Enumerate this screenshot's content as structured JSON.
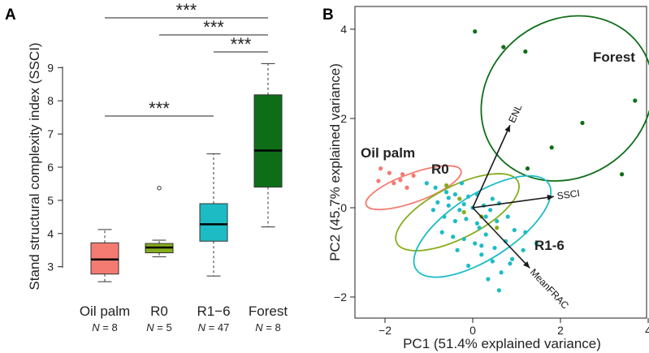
{
  "panels": {
    "a": {
      "letter": "A",
      "ylabel": "Stand structural complexity index (SSCI)",
      "significance_label": "***",
      "n_prefix": "N",
      "n_equals": " = "
    },
    "b": {
      "letter": "B",
      "xlabel": "PC1 (51.4% explained variance)",
      "ylabel": "PC2 (45.7% explained variance)"
    }
  },
  "chart_data": [
    {
      "type": "box",
      "ylabel": "Stand structural complexity index (SSCI)",
      "ylim": [
        2.55,
        9.7
      ],
      "yticks": [
        3,
        4,
        5,
        6,
        7,
        8,
        9
      ],
      "grid": false,
      "categories": [
        "Oil palm",
        "R0",
        "R1−6",
        "Forest"
      ],
      "n": [
        8,
        5,
        47,
        8
      ],
      "colors": [
        "#f47b72",
        "#86ad1c",
        "#1dbcc5",
        "#0e6e18"
      ],
      "boxes": [
        {
          "min": 2.55,
          "q1": 2.78,
          "median": 3.22,
          "q3": 3.72,
          "max": 4.12,
          "outliers": []
        },
        {
          "min": 3.3,
          "q1": 3.42,
          "median": 3.58,
          "q3": 3.7,
          "max": 3.8,
          "outliers": [
            5.37
          ]
        },
        {
          "min": 2.72,
          "q1": 3.77,
          "median": 4.28,
          "q3": 4.9,
          "max": 6.4,
          "outliers": []
        },
        {
          "min": 4.2,
          "q1": 5.4,
          "median": 6.5,
          "q3": 8.18,
          "max": 9.12,
          "outliers": []
        }
      ],
      "significance": [
        {
          "from": "Oil palm",
          "to": "Forest",
          "label": "***"
        },
        {
          "from": "R0",
          "to": "Forest",
          "label": "***"
        },
        {
          "from": "R1−6",
          "to": "Forest",
          "label": "***"
        },
        {
          "from": "Oil palm",
          "to": "R1−6",
          "label": "***"
        }
      ]
    },
    {
      "type": "scatter",
      "subtype": "pca-biplot",
      "xlabel": "PC1 (51.4% explained variance)",
      "ylabel": "PC2 (45.7% explained variance)",
      "xlim": [
        -2.7,
        4.0
      ],
      "ylim": [
        -2.35,
        4.5
      ],
      "xticks": [
        -2,
        0,
        2,
        4
      ],
      "yticks": [
        -2,
        0,
        2,
        4
      ],
      "grid": false,
      "groups": [
        {
          "name": "Forest",
          "color": "#0e6e18",
          "points": [
            [
              0.05,
              3.95
            ],
            [
              0.7,
              3.6
            ],
            [
              1.2,
              3.5
            ],
            [
              3.7,
              2.4
            ],
            [
              2.5,
              1.9
            ],
            [
              1.8,
              1.35
            ],
            [
              3.4,
              0.75
            ],
            [
              1.25,
              0.88
            ]
          ],
          "ellipse": {
            "cx": 2.15,
            "cy": 2.45,
            "rx": 2.05,
            "ry": 1.75,
            "angle": -37
          }
        },
        {
          "name": "Oil palm",
          "color": "#f47b72",
          "points": [
            [
              -2.1,
              0.88
            ],
            [
              -1.9,
              0.78
            ],
            [
              -1.6,
              0.75
            ],
            [
              -1.35,
              0.72
            ],
            [
              -2.15,
              0.6
            ],
            [
              -1.8,
              0.55
            ],
            [
              -1.5,
              0.45
            ],
            [
              -1.65,
              0.62
            ]
          ],
          "ellipse": {
            "cx": -1.35,
            "cy": 0.45,
            "rx": 1.15,
            "ry": 0.32,
            "angle": -20
          }
        },
        {
          "name": "R0",
          "color": "#86ad1c",
          "points": [
            [
              -0.6,
              0.5
            ],
            [
              -0.3,
              0.2
            ],
            [
              0.2,
              -0.2
            ],
            [
              0.55,
              -0.45
            ],
            [
              -0.2,
              -0.1
            ]
          ],
          "ellipse": {
            "cx": -0.35,
            "cy": -0.1,
            "rx": 1.55,
            "ry": 0.58,
            "angle": -27
          }
        },
        {
          "name": "R1-6",
          "color": "#1dbcc5",
          "points": [
            [
              -1.05,
              0.55
            ],
            [
              -0.85,
              0.45
            ],
            [
              -0.6,
              0.35
            ],
            [
              -0.4,
              0.3
            ],
            [
              -0.25,
              0.55
            ],
            [
              -0.1,
              0.25
            ],
            [
              0.1,
              0.3
            ],
            [
              -0.55,
              0.05
            ],
            [
              -0.8,
              0.12
            ],
            [
              -0.3,
              -0.05
            ],
            [
              0.0,
              0.0
            ],
            [
              0.25,
              0.05
            ],
            [
              0.4,
              -0.05
            ],
            [
              0.6,
              0.1
            ],
            [
              -0.9,
              -0.05
            ],
            [
              -0.65,
              -0.2
            ],
            [
              -0.4,
              -0.3
            ],
            [
              -0.15,
              -0.25
            ],
            [
              0.1,
              -0.35
            ],
            [
              0.3,
              -0.2
            ],
            [
              0.55,
              -0.3
            ],
            [
              0.8,
              -0.2
            ],
            [
              -0.7,
              -0.55
            ],
            [
              -0.45,
              -0.65
            ],
            [
              -0.2,
              -0.7
            ],
            [
              0.05,
              -0.8
            ],
            [
              0.3,
              -0.6
            ],
            [
              0.5,
              -0.9
            ],
            [
              0.75,
              -0.75
            ],
            [
              0.95,
              -0.5
            ],
            [
              1.2,
              -0.55
            ],
            [
              0.2,
              -1.05
            ],
            [
              0.45,
              -1.2
            ],
            [
              -0.1,
              -1.3
            ],
            [
              0.65,
              -1.45
            ],
            [
              0.9,
              -1.15
            ],
            [
              1.15,
              -0.95
            ],
            [
              0.35,
              -1.6
            ],
            [
              0.6,
              -1.85
            ],
            [
              -0.35,
              -0.95
            ],
            [
              1.45,
              -0.8
            ],
            [
              0.15,
              -0.45
            ],
            [
              -0.55,
              0.22
            ],
            [
              0.45,
              0.2
            ],
            [
              -0.2,
              0.08
            ],
            [
              0.85,
              -1.25
            ],
            [
              0.2,
              -0.85
            ]
          ],
          "ellipse": {
            "cx": 0.22,
            "cy": -0.42,
            "rx": 1.8,
            "ry": 0.72,
            "angle": -33
          }
        }
      ],
      "loadings": [
        {
          "label": "ENL",
          "x": 0.85,
          "y": 1.85
        },
        {
          "label": "SSCI",
          "x": 1.85,
          "y": 0.25
        },
        {
          "label": "MeanFRAC",
          "x": 1.3,
          "y": -1.35
        }
      ]
    }
  ]
}
